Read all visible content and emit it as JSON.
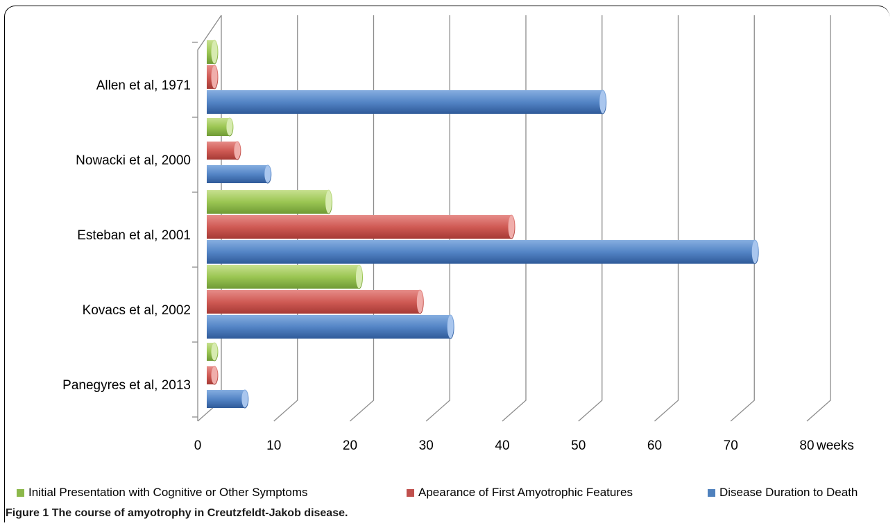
{
  "chart_data": {
    "type": "bar",
    "orientation": "horizontal",
    "categories": [
      "Panegyres et al, 2013",
      "Kovacs et al, 2002",
      "Esteban et al, 2001",
      "Nowacki et al, 2000",
      "Allen et al, 1971"
    ],
    "series": [
      {
        "name": "Initial Presentation with Cognitive or Other Symptoms",
        "color": "#8cb84a",
        "values": [
          1,
          20,
          16,
          3,
          1
        ]
      },
      {
        "name": "Apearance of First Amyotrophic Features",
        "color": "#c0504d",
        "values": [
          1,
          28,
          40,
          4,
          1
        ]
      },
      {
        "name": "Disease Duration to Death",
        "color": "#4f81bd",
        "values": [
          5,
          32,
          72,
          8,
          52
        ]
      }
    ],
    "xlim": [
      0,
      80
    ],
    "x_ticks": [
      "0",
      "10",
      "20",
      "30",
      "40",
      "50",
      "60",
      "70",
      "80"
    ],
    "x_unit": "weeks",
    "grid": true,
    "legend_position": "bottom"
  },
  "caption": {
    "label": "Figure 1",
    "text": "The course of amyotrophy in Creutzfeldt-Jakob disease."
  }
}
